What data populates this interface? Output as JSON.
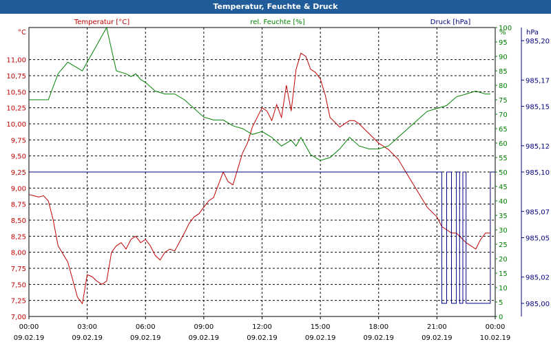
{
  "window": {
    "title": "Temperatur, Feuchte & Druck"
  },
  "colors": {
    "temperature": "#c00000",
    "humidity": "#008000",
    "pressure": "#000080",
    "titlebar": "#1f5c99"
  },
  "chart_data": {
    "type": "line",
    "title": "Temperatur, Feuchte & Druck",
    "grid": true,
    "x_ticks": [
      {
        "time": "00:00",
        "date": "09.02.19"
      },
      {
        "time": "03:00",
        "date": "09.02.19"
      },
      {
        "time": "06:00",
        "date": "09.02.19"
      },
      {
        "time": "09:00",
        "date": "09.02.19"
      },
      {
        "time": "12:00",
        "date": "09.02.19"
      },
      {
        "time": "15:00",
        "date": "09.02.19"
      },
      {
        "time": "18:00",
        "date": "09.02.19"
      },
      {
        "time": "21:00",
        "date": "09.02.19"
      },
      {
        "time": "00:00",
        "date": "10.02.19"
      }
    ],
    "xlim": [
      "09.02.19 00:00",
      "10.02.19 00:00"
    ],
    "axes": {
      "temperature": {
        "unit": "°C",
        "ylim": [
          7.0,
          11.5
        ],
        "ticks": [
          "7,00",
          "7,25",
          "7,50",
          "7,75",
          "8,00",
          "8,25",
          "8,50",
          "8,75",
          "9,00",
          "9,25",
          "9,50",
          "9,75",
          "10,00",
          "10,25",
          "10,50",
          "10,75",
          "11,00"
        ]
      },
      "humidity": {
        "unit": "%",
        "ylim": [
          0,
          100
        ],
        "ticks": [
          "0",
          "5",
          "10",
          "15",
          "20",
          "25",
          "30",
          "35",
          "40",
          "45",
          "50",
          "55",
          "60",
          "65",
          "70",
          "75",
          "80",
          "85",
          "90",
          "95",
          "100"
        ]
      },
      "pressure": {
        "unit": "hPa",
        "ylim": [
          984.99,
          985.21
        ],
        "ticks": [
          "985,00",
          "985,02",
          "985,05",
          "985,07",
          "985,10",
          "985,12",
          "985,15",
          "985,17",
          "985,20"
        ]
      }
    },
    "series": [
      {
        "name": "Temperatur [°C]",
        "axis": "temperature",
        "color": "#c00000",
        "x": [
          "09.02.19 00:00",
          "09.02.19 00:15",
          "09.02.19 00:30",
          "09.02.19 00:45",
          "09.02.19 01:00",
          "09.02.19 01:15",
          "09.02.19 01:30",
          "09.02.19 02:00",
          "09.02.19 02:30",
          "09.02.19 02:45",
          "09.02.19 03:00",
          "09.02.19 03:15",
          "09.02.19 03:30",
          "09.02.19 03:45",
          "09.02.19 04:00",
          "09.02.19 04:15",
          "09.02.19 04:30",
          "09.02.19 04:45",
          "09.02.19 05:00",
          "09.02.19 05:15",
          "09.02.19 05:30",
          "09.02.19 05:45",
          "09.02.19 06:00",
          "09.02.19 06:15",
          "09.02.19 06:30",
          "09.02.19 06:45",
          "09.02.19 07:00",
          "09.02.19 07:15",
          "09.02.19 07:30",
          "09.02.19 08:00",
          "09.02.19 08:15",
          "09.02.19 08:30",
          "09.02.19 08:45",
          "09.02.19 09:00",
          "09.02.19 09:15",
          "09.02.19 09:30",
          "09.02.19 10:00",
          "09.02.19 10:15",
          "09.02.19 10:30",
          "09.02.19 10:45",
          "09.02.19 11:00",
          "09.02.19 11:15",
          "09.02.19 11:30",
          "09.02.19 11:45",
          "09.02.19 12:00",
          "09.02.19 12:15",
          "09.02.19 12:30",
          "09.02.19 12:45",
          "09.02.19 13:00",
          "09.02.19 13:15",
          "09.02.19 13:30",
          "09.02.19 13:45",
          "09.02.19 14:00",
          "09.02.19 14:15",
          "09.02.19 14:30",
          "09.02.19 14:45",
          "09.02.19 15:00",
          "09.02.19 15:15",
          "09.02.19 15:30",
          "09.02.19 16:00",
          "09.02.19 16:30",
          "09.02.19 16:45",
          "09.02.19 17:00",
          "09.02.19 17:30",
          "09.02.19 18:00",
          "09.02.19 18:30",
          "09.02.19 19:00",
          "09.02.19 19:30",
          "09.02.19 20:00",
          "09.02.19 20:30",
          "09.02.19 21:00",
          "09.02.19 21:15",
          "09.02.19 21:30",
          "09.02.19 21:45",
          "09.02.19 22:00",
          "09.02.19 22:30",
          "09.02.19 23:00",
          "09.02.19 23:15",
          "09.02.19 23:30",
          "09.02.19 23:45"
        ],
        "values": [
          8.9,
          8.88,
          8.86,
          8.88,
          8.8,
          8.5,
          8.1,
          7.85,
          7.3,
          7.2,
          7.65,
          7.62,
          7.55,
          7.5,
          7.55,
          8.0,
          8.1,
          8.15,
          8.05,
          8.2,
          8.25,
          8.15,
          8.2,
          8.1,
          7.95,
          7.88,
          8.0,
          8.05,
          8.02,
          8.3,
          8.45,
          8.55,
          8.6,
          8.7,
          8.8,
          8.85,
          9.25,
          9.1,
          9.05,
          9.3,
          9.55,
          9.7,
          9.95,
          10.1,
          10.25,
          10.2,
          10.05,
          10.3,
          10.1,
          10.6,
          10.2,
          10.85,
          11.1,
          11.05,
          10.85,
          10.8,
          10.7,
          10.45,
          10.1,
          9.95,
          10.05,
          10.05,
          10.0,
          9.85,
          9.7,
          9.6,
          9.45,
          9.2,
          8.95,
          8.7,
          8.55,
          8.4,
          8.35,
          8.3,
          8.3,
          8.15,
          8.05,
          8.2,
          8.3,
          8.3
        ]
      },
      {
        "name": "rel. Feuchte [%]",
        "axis": "humidity",
        "color": "#008000",
        "x": [
          "09.02.19 00:00",
          "09.02.19 00:30",
          "09.02.19 01:00",
          "09.02.19 01:30",
          "09.02.19 02:00",
          "09.02.19 02:30",
          "09.02.19 02:45",
          "09.02.19 03:00",
          "09.02.19 03:30",
          "09.02.19 04:00",
          "09.02.19 04:30",
          "09.02.19 05:00",
          "09.02.19 05:15",
          "09.02.19 05:30",
          "09.02.19 05:45",
          "09.02.19 06:00",
          "09.02.19 06:30",
          "09.02.19 07:00",
          "09.02.19 07:30",
          "09.02.19 08:00",
          "09.02.19 09:00",
          "09.02.19 09:30",
          "09.02.19 10:00",
          "09.02.19 10:30",
          "09.02.19 11:00",
          "09.02.19 11:30",
          "09.02.19 12:00",
          "09.02.19 12:30",
          "09.02.19 13:00",
          "09.02.19 13:30",
          "09.02.19 13:45",
          "09.02.19 14:00",
          "09.02.19 14:30",
          "09.02.19 15:00",
          "09.02.19 15:30",
          "09.02.19 16:00",
          "09.02.19 16:30",
          "09.02.19 17:00",
          "09.02.19 17:30",
          "09.02.19 18:00",
          "09.02.19 18:30",
          "09.02.19 19:00",
          "09.02.19 19:30",
          "09.02.19 20:00",
          "09.02.19 20:30",
          "09.02.19 21:00",
          "09.02.19 21:30",
          "09.02.19 22:00",
          "09.02.19 22:30",
          "09.02.19 23:00",
          "09.02.19 23:30",
          "09.02.19 23:45"
        ],
        "values": [
          75,
          75,
          75,
          84,
          88,
          86,
          85,
          88,
          94,
          100,
          85,
          84,
          83,
          84,
          82,
          81,
          78,
          77,
          77,
          75,
          69,
          68,
          68,
          66,
          65,
          63,
          64,
          62,
          59,
          61,
          59,
          62,
          56,
          54,
          55,
          58,
          62,
          59,
          58,
          58,
          59,
          62,
          65,
          68,
          71,
          72,
          73,
          76,
          77,
          78,
          77,
          77
        ]
      },
      {
        "name": "Druck [hPa]",
        "axis": "pressure",
        "color": "#000080",
        "x": [
          "09.02.19 00:00",
          "09.02.19 21:15",
          "09.02.19 21:15",
          "09.02.19 21:30",
          "09.02.19 21:30",
          "09.02.19 21:45",
          "09.02.19 21:45",
          "09.02.19 22:00",
          "09.02.19 22:00",
          "09.02.19 22:10",
          "09.02.19 22:10",
          "09.02.19 22:20",
          "09.02.19 22:20",
          "09.02.19 22:30",
          "09.02.19 22:30",
          "09.02.19 23:45",
          "09.02.19 23:45",
          "10.02.19 00:00"
        ],
        "values": [
          985.1,
          985.1,
          985.0,
          985.0,
          985.1,
          985.1,
          985.0,
          985.0,
          985.1,
          985.1,
          985.0,
          985.0,
          985.1,
          985.1,
          985.0,
          985.0,
          985.1,
          985.1
        ]
      }
    ]
  }
}
